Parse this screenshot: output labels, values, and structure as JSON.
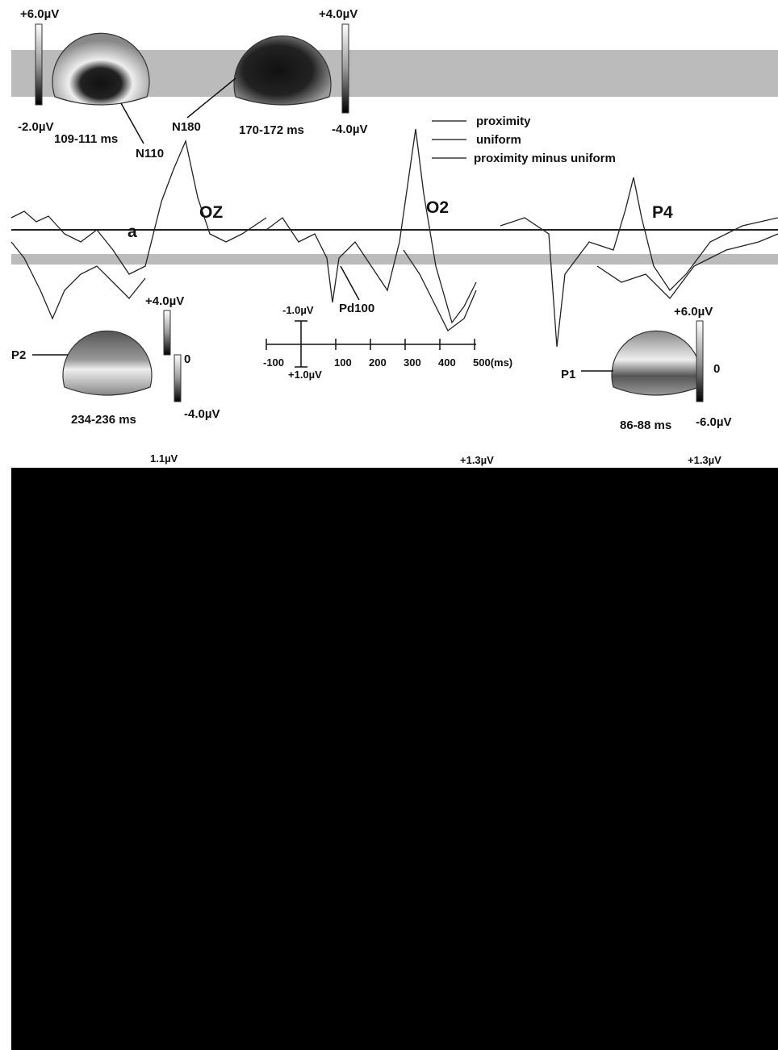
{
  "topomaps": [
    {
      "max_label": "+6.0µV",
      "min_label": "-2.0µV",
      "time": "109-111 ms",
      "component": "N110"
    },
    {
      "max_label": "+4.0µV",
      "min_label": "-4.0µV",
      "time": "170-172 ms",
      "component": "N180"
    },
    {
      "max_label": "+4.0µV",
      "min_label": "-4.0µV",
      "zero_label": "0",
      "time": "234-236 ms",
      "component": "P2"
    },
    {
      "max_label": "+6.0µV",
      "min_label": "-6.0µV",
      "zero_label": "0",
      "time": "86-88 ms",
      "component": "P1"
    }
  ],
  "legend": [
    "proximity",
    "uniform",
    "proximity minus uniform"
  ],
  "panel_label": "a",
  "electrodes": [
    "OZ",
    "O2",
    "P4"
  ],
  "annotation": "Pd100",
  "scale": {
    "y_top": "-1.0µV",
    "y_bottom": "+1.0µV",
    "x_ticks": [
      "-100",
      "100",
      "200",
      "300",
      "400",
      "500(ms)"
    ]
  },
  "bottom_row_labels": [
    "1.1µV",
    "+1.3µV",
    "+1.3µV"
  ]
}
